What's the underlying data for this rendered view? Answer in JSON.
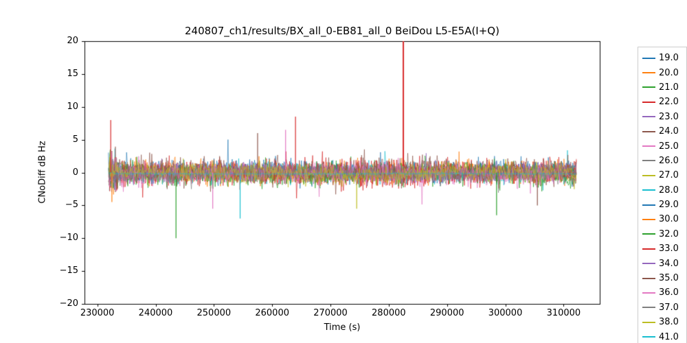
{
  "chart_data": {
    "type": "line",
    "title": "240807_ch1/results/BX_all_0-EB81_all_0 BeiDou L5-E5A(I+Q)",
    "xlabel": "Time (s)",
    "ylabel": "CNoDiff dB Hz",
    "xlim": [
      227800,
      316200
    ],
    "ylim": [
      -20,
      20
    ],
    "xticks": [
      230000,
      240000,
      250000,
      260000,
      270000,
      280000,
      290000,
      300000,
      310000
    ],
    "xtick_labels": [
      "230000",
      "240000",
      "250000",
      "260000",
      "270000",
      "280000",
      "290000",
      "300000",
      "310000"
    ],
    "yticks": [
      -20,
      -15,
      -10,
      -5,
      0,
      5,
      10,
      15,
      20
    ],
    "ytick_labels": [
      "−20",
      "−15",
      "−10",
      "−5",
      "0",
      "5",
      "10",
      "15",
      "20"
    ],
    "grid": false,
    "legend_position": "outside-right",
    "x_data_range": [
      231900,
      312200
    ],
    "series": [
      {
        "name": "19.0",
        "color": "#1f77b4",
        "noise_amp": 1.4,
        "offset": 0
      },
      {
        "name": "20.0",
        "color": "#ff7f0e",
        "noise_amp": 1.3,
        "offset": 0
      },
      {
        "name": "21.0",
        "color": "#2ca02c",
        "noise_amp": 0.3,
        "offset": 0.3
      },
      {
        "name": "22.0",
        "color": "#d62728",
        "noise_amp": 1.6,
        "offset": -0.2
      },
      {
        "name": "23.0",
        "color": "#9467bd",
        "noise_amp": 1.1,
        "offset": 0
      },
      {
        "name": "24.0",
        "color": "#8c564b",
        "noise_amp": 1.5,
        "offset": 0.2
      },
      {
        "name": "25.0",
        "color": "#e377c2",
        "noise_amp": 1.3,
        "offset": -0.2
      },
      {
        "name": "26.0",
        "color": "#7f7f7f",
        "noise_amp": 0.15,
        "offset": -0.5
      },
      {
        "name": "27.0",
        "color": "#bcbd22",
        "noise_amp": 1.2,
        "offset": -0.3
      },
      {
        "name": "28.0",
        "color": "#17becf",
        "noise_amp": 1.3,
        "offset": 0
      },
      {
        "name": "29.0",
        "color": "#1f77b4",
        "noise_amp": 1.3,
        "offset": 0.2
      },
      {
        "name": "30.0",
        "color": "#ff7f0e",
        "noise_amp": 1.5,
        "offset": 0
      },
      {
        "name": "32.0",
        "color": "#2ca02c",
        "noise_amp": 1.7,
        "offset": -0.2
      },
      {
        "name": "33.0",
        "color": "#d62728",
        "noise_amp": 1.5,
        "offset": 0
      },
      {
        "name": "34.0",
        "color": "#9467bd",
        "noise_amp": 1.2,
        "offset": 0
      },
      {
        "name": "35.0",
        "color": "#8c564b",
        "noise_amp": 1.6,
        "offset": 0.3
      },
      {
        "name": "36.0",
        "color": "#e377c2",
        "noise_amp": 1.4,
        "offset": 0
      },
      {
        "name": "37.0",
        "color": "#7f7f7f",
        "noise_amp": 1.0,
        "offset": -0.2
      },
      {
        "name": "38.0",
        "color": "#bcbd22",
        "noise_amp": 1.1,
        "offset": 0
      },
      {
        "name": "41.0",
        "color": "#17becf",
        "noise_amp": 0.12,
        "offset": -0.2
      }
    ],
    "events": [
      {
        "x": 282500,
        "y": 20,
        "y_base": 1.0,
        "color": "#d62728",
        "width": 2
      },
      {
        "x": 232300,
        "y": 8,
        "y_base": 0,
        "color": "#d62728",
        "width": 1.2
      },
      {
        "x": 232500,
        "y": -4.5,
        "y_base": 0,
        "color": "#ff7f0e",
        "width": 1.2
      },
      {
        "x": 243500,
        "y": -10,
        "y_base": -0.5,
        "color": "#2ca02c",
        "width": 1.2
      },
      {
        "x": 249800,
        "y": -5.5,
        "y_base": 0,
        "color": "#e377c2",
        "width": 1.2
      },
      {
        "x": 254500,
        "y": -7,
        "y_base": -0.5,
        "color": "#17becf",
        "width": 1.2
      },
      {
        "x": 257500,
        "y": 6,
        "y_base": 0.5,
        "color": "#8c564b",
        "width": 1.2
      },
      {
        "x": 262300,
        "y": 6.5,
        "y_base": 0.5,
        "color": "#e377c2",
        "width": 1.2
      },
      {
        "x": 264000,
        "y": 8.5,
        "y_base": 0.5,
        "color": "#d62728",
        "width": 1.2
      },
      {
        "x": 274500,
        "y": -5.5,
        "y_base": 0,
        "color": "#bcbd22",
        "width": 1.2
      },
      {
        "x": 298500,
        "y": -6.5,
        "y_base": 0,
        "color": "#2ca02c",
        "width": 1.2
      },
      {
        "x": 305500,
        "y": -5,
        "y_base": 0,
        "color": "#8c564b",
        "width": 1.2
      }
    ],
    "axis_color": "#000000",
    "legend_border_color": "#cccccc"
  }
}
